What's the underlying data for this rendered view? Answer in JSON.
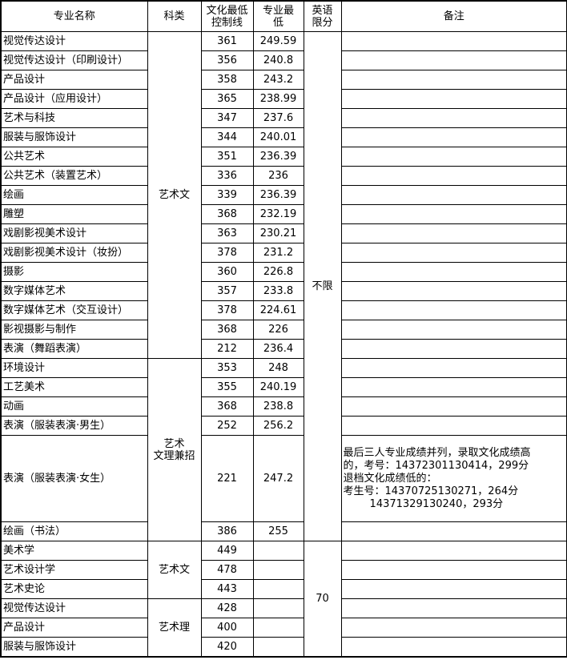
{
  "headers": [
    "专业名称",
    "科类",
    "文化最低控制线",
    "专业最低",
    "英语限分",
    "备注"
  ],
  "headers_display": [
    "专业名称",
    "科类",
    "文化最低\n控制线",
    "专业最\n低",
    "英语\n限分",
    "备注"
  ],
  "groups": [
    {
      "category": "艺术文",
      "rows": [
        {
          "name": "视觉传达设计",
          "culture_min": "361",
          "major_min": "249.59",
          "note": ""
        },
        {
          "name": "视觉传达设计（印刷设计）",
          "culture_min": "356",
          "major_min": "240.8",
          "note": ""
        },
        {
          "name": "产品设计",
          "culture_min": "358",
          "major_min": "243.2",
          "note": ""
        },
        {
          "name": "产品设计（应用设计）",
          "culture_min": "365",
          "major_min": "238.99",
          "note": ""
        },
        {
          "name": "艺术与科技",
          "culture_min": "347",
          "major_min": "237.6",
          "note": ""
        },
        {
          "name": "服装与服饰设计",
          "culture_min": "344",
          "major_min": "240.01",
          "note": ""
        },
        {
          "name": "公共艺术",
          "culture_min": "351",
          "major_min": "236.39",
          "note": ""
        },
        {
          "name": "公共艺术（装置艺术）",
          "culture_min": "336",
          "major_min": "236",
          "note": ""
        },
        {
          "name": "绘画",
          "culture_min": "339",
          "major_min": "236.39",
          "note": ""
        },
        {
          "name": "雕塑",
          "culture_min": "368",
          "major_min": "232.19",
          "note": ""
        },
        {
          "name": "戏剧影视美术设计",
          "culture_min": "363",
          "major_min": "230.21",
          "note": ""
        },
        {
          "name": "戏剧影视美术设计（妆扮）",
          "culture_min": "378",
          "major_min": "231.2",
          "note": ""
        },
        {
          "name": "摄影",
          "culture_min": "360",
          "major_min": "226.8",
          "note": ""
        },
        {
          "name": "数字媒体艺术",
          "culture_min": "357",
          "major_min": "233.8",
          "note": ""
        },
        {
          "name": "数字媒体艺术（交互设计）",
          "culture_min": "378",
          "major_min": "224.61",
          "note": ""
        },
        {
          "name": "影视摄影与制作",
          "culture_min": "368",
          "major_min": "226",
          "note": ""
        },
        {
          "name": "表演（舞蹈表演）",
          "culture_min": "212",
          "major_min": "236.4",
          "note": ""
        }
      ]
    },
    {
      "category": "艺术\n文理兼招",
      "rows": [
        {
          "name": "环境设计",
          "culture_min": "353",
          "major_min": "248",
          "note": ""
        },
        {
          "name": "工艺美术",
          "culture_min": "355",
          "major_min": "240.19",
          "note": ""
        },
        {
          "name": "动画",
          "culture_min": "368",
          "major_min": "238.8",
          "note": ""
        },
        {
          "name": "表演（服装表演·男生）",
          "culture_min": "252",
          "major_min": "256.2",
          "note": ""
        },
        {
          "name": "表演（服装表演·女生）",
          "culture_min": "221",
          "major_min": "247.2",
          "note": "最后三人专业成绩并列，录取文化成绩高\n的，考号：14372301130414，299分\n退档文化成绩低的：\n考生号：14370725130271，264分\n        14371329130240，293分"
        },
        {
          "name": "绘画（书法）",
          "culture_min": "386",
          "major_min": "255",
          "note": ""
        }
      ]
    },
    {
      "category": "艺术文",
      "rows": [
        {
          "name": "美术学",
          "culture_min": "449",
          "major_min": "",
          "note": ""
        },
        {
          "name": "艺术设计学",
          "culture_min": "478",
          "major_min": "",
          "note": ""
        },
        {
          "name": "艺术史论",
          "culture_min": "443",
          "major_min": "",
          "note": ""
        }
      ]
    },
    {
      "category": "艺术理",
      "rows": [
        {
          "name": "视觉传达设计",
          "culture_min": "428",
          "major_min": "",
          "note": ""
        },
        {
          "name": "产品设计",
          "culture_min": "400",
          "major_min": "",
          "note": ""
        },
        {
          "name": "服装与服饰设计",
          "culture_min": "420",
          "major_min": "",
          "note": ""
        }
      ]
    }
  ],
  "english_limits": [
    {
      "value": "不限",
      "groups": 2
    },
    {
      "value": "70",
      "groups": 2
    }
  ]
}
